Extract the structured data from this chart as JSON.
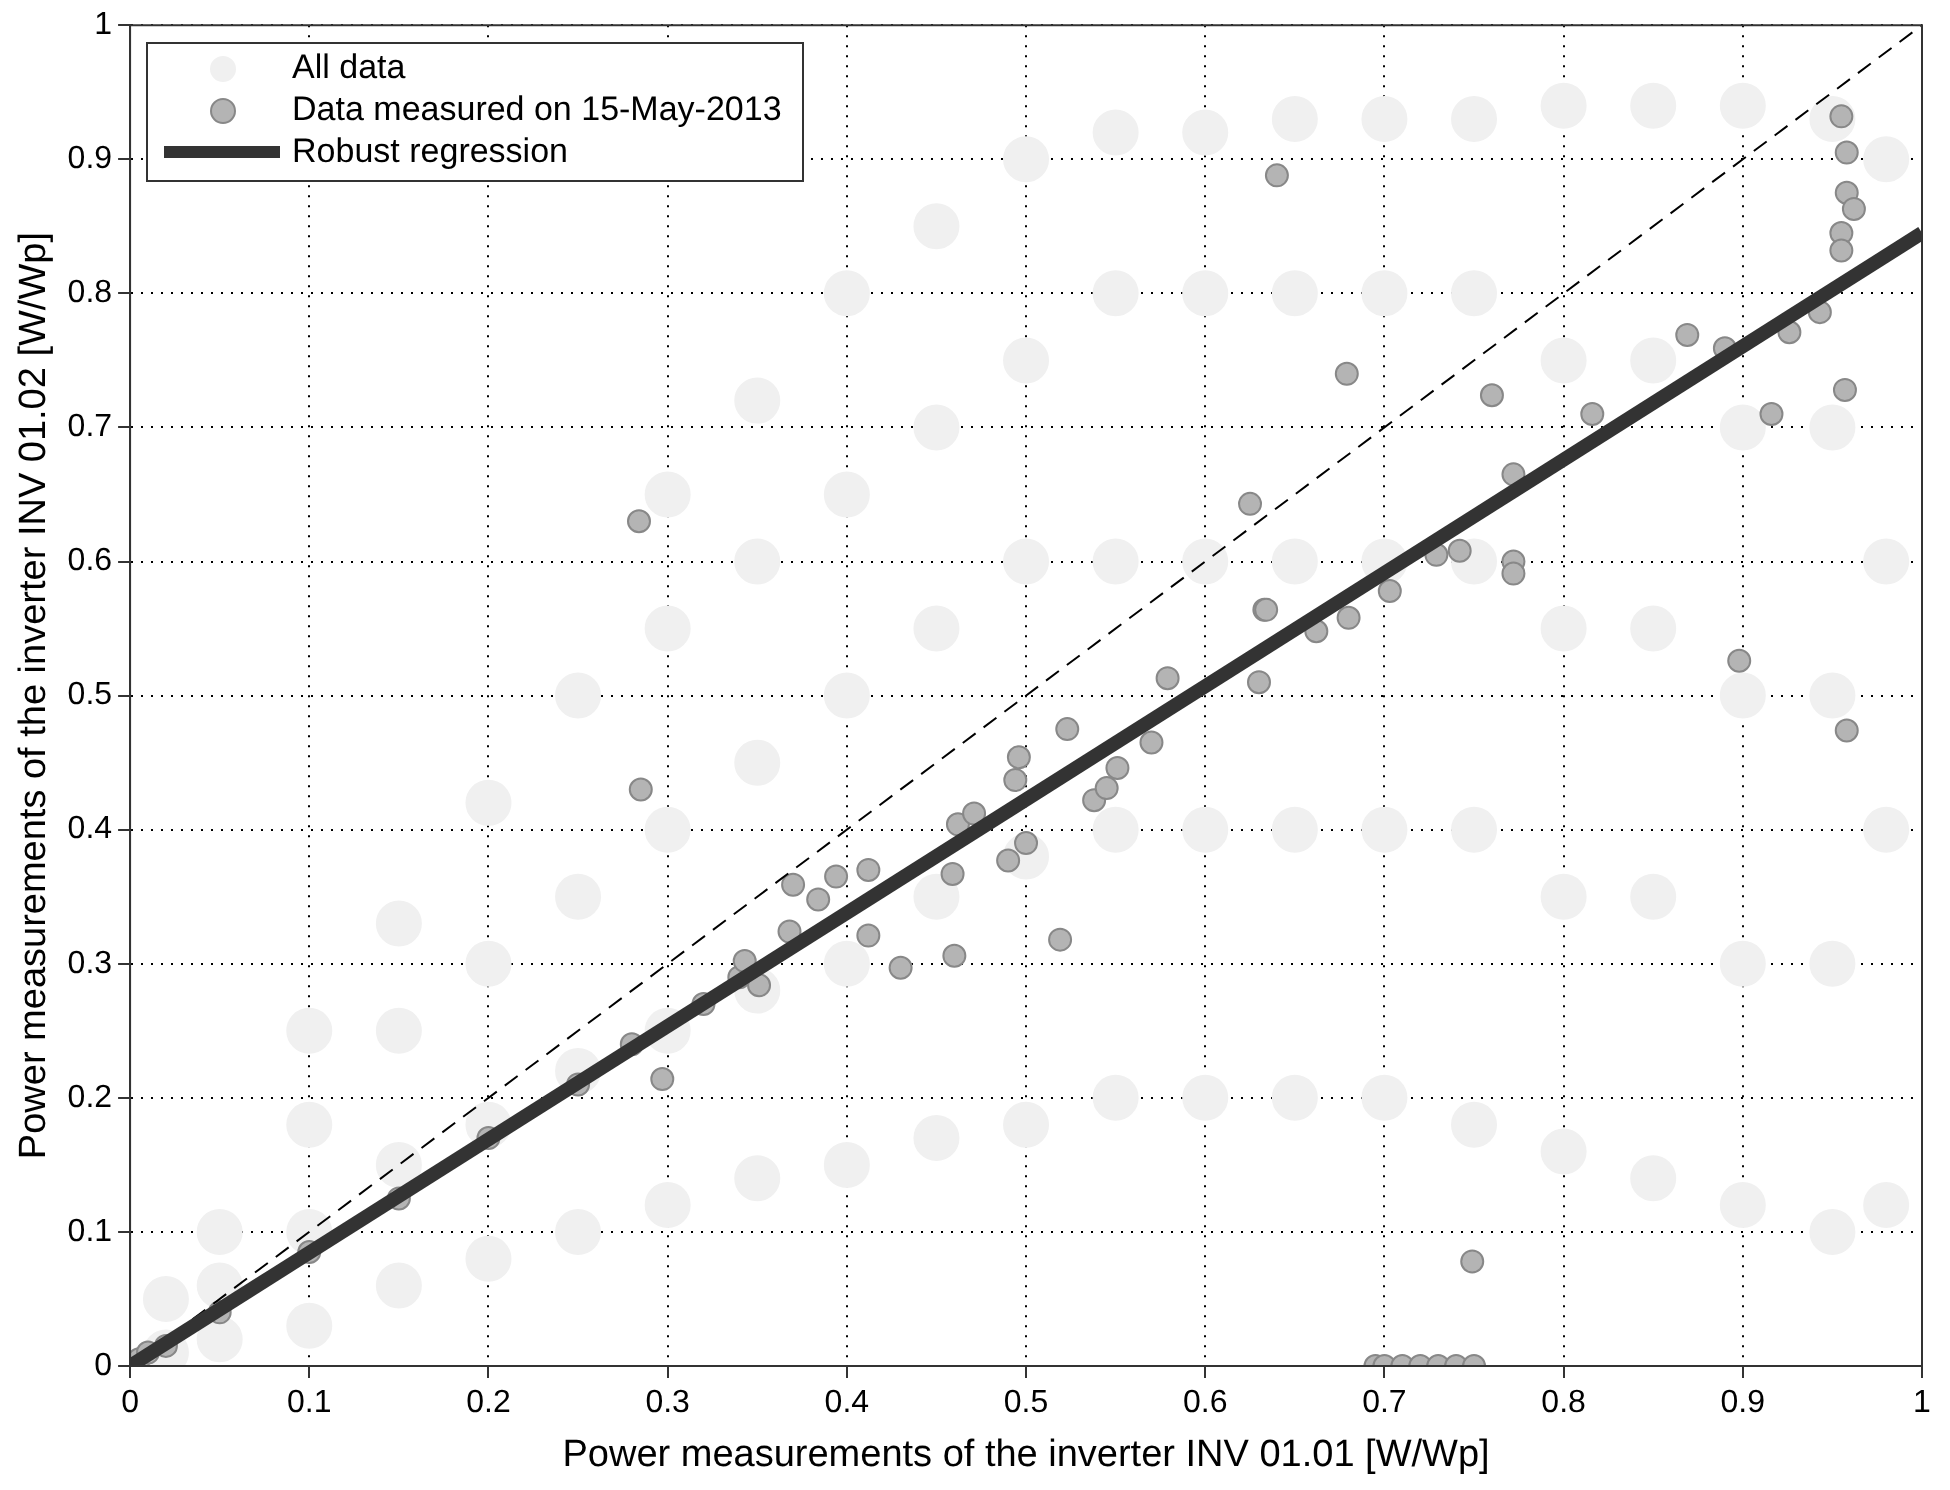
{
  "chart_data": {
    "type": "scatter",
    "xlabel": "Power measurements of the inverter INV 01.01 [W/Wp]",
    "ylabel": "Power measurements of the inverter INV 01.02 [W/Wp]",
    "xlim": [
      0,
      1
    ],
    "ylim": [
      0,
      1
    ],
    "xticks": [
      0,
      0.1,
      0.2,
      0.3,
      0.4,
      0.5,
      0.6,
      0.7,
      0.8,
      0.9,
      1
    ],
    "yticks": [
      0,
      0.1,
      0.2,
      0.3,
      0.4,
      0.5,
      0.6,
      0.7,
      0.8,
      0.9,
      1
    ],
    "grid": true,
    "legend": "top left",
    "series": [
      {
        "name": "All data",
        "marker": "circle",
        "color": "#f0f0f0",
        "x": [
          0.02,
          0.02,
          0.05,
          0.05,
          0.05,
          0.1,
          0.1,
          0.1,
          0.1,
          0.15,
          0.15,
          0.15,
          0.15,
          0.2,
          0.2,
          0.2,
          0.2,
          0.25,
          0.25,
          0.25,
          0.25,
          0.3,
          0.3,
          0.3,
          0.3,
          0.3,
          0.35,
          0.35,
          0.35,
          0.35,
          0.35,
          0.4,
          0.4,
          0.4,
          0.4,
          0.4,
          0.45,
          0.45,
          0.45,
          0.45,
          0.45,
          0.5,
          0.5,
          0.5,
          0.5,
          0.5,
          0.55,
          0.55,
          0.55,
          0.55,
          0.55,
          0.6,
          0.6,
          0.6,
          0.6,
          0.6,
          0.65,
          0.65,
          0.65,
          0.65,
          0.65,
          0.7,
          0.7,
          0.7,
          0.7,
          0.7,
          0.75,
          0.75,
          0.75,
          0.75,
          0.75,
          0.8,
          0.8,
          0.8,
          0.8,
          0.8,
          0.85,
          0.85,
          0.85,
          0.85,
          0.85,
          0.9,
          0.9,
          0.9,
          0.9,
          0.9,
          0.95,
          0.95,
          0.95,
          0.95,
          0.95,
          0.98,
          0.98,
          0.98,
          0.98
        ],
        "values": [
          0.01,
          0.05,
          0.02,
          0.06,
          0.1,
          0.03,
          0.1,
          0.18,
          0.25,
          0.06,
          0.15,
          0.25,
          0.33,
          0.08,
          0.18,
          0.3,
          0.42,
          0.1,
          0.22,
          0.35,
          0.5,
          0.12,
          0.25,
          0.4,
          0.55,
          0.65,
          0.14,
          0.28,
          0.45,
          0.6,
          0.72,
          0.15,
          0.3,
          0.5,
          0.65,
          0.8,
          0.17,
          0.35,
          0.55,
          0.7,
          0.85,
          0.18,
          0.38,
          0.6,
          0.75,
          0.9,
          0.2,
          0.4,
          0.6,
          0.8,
          0.92,
          0.2,
          0.4,
          0.6,
          0.8,
          0.92,
          0.2,
          0.4,
          0.6,
          0.8,
          0.93,
          0.2,
          0.4,
          0.6,
          0.8,
          0.93,
          0.18,
          0.4,
          0.6,
          0.8,
          0.93,
          0.16,
          0.35,
          0.55,
          0.75,
          0.94,
          0.14,
          0.35,
          0.55,
          0.75,
          0.94,
          0.12,
          0.3,
          0.5,
          0.7,
          0.94,
          0.1,
          0.3,
          0.5,
          0.7,
          0.93,
          0.12,
          0.4,
          0.6,
          0.9
        ]
      },
      {
        "name": "Data measured on 15-May-2013",
        "marker": "circle",
        "color": "#b4b4b4",
        "x": [
          0.005,
          0.01,
          0.02,
          0.05,
          0.1,
          0.15,
          0.2,
          0.25,
          0.28,
          0.32,
          0.34,
          0.343,
          0.351,
          0.368,
          0.37,
          0.384,
          0.394,
          0.412,
          0.412,
          0.43,
          0.459,
          0.46,
          0.462,
          0.471,
          0.49,
          0.494,
          0.496,
          0.5,
          0.519,
          0.523,
          0.538,
          0.545,
          0.551,
          0.57,
          0.579,
          0.625,
          0.63,
          0.633,
          0.634,
          0.64,
          0.662,
          0.68,
          0.703,
          0.729,
          0.742,
          0.772,
          0.772,
          0.772,
          0.679,
          0.76,
          0.816,
          0.869,
          0.89,
          0.926,
          0.943,
          0.916,
          0.898,
          0.957,
          0.958,
          0.955,
          0.958,
          0.958,
          0.962,
          0.955,
          0.955,
          0.284,
          0.285,
          0.297,
          0.749,
          0.695,
          0.7,
          0.71,
          0.72,
          0.73,
          0.74,
          0.75
        ],
        "values": [
          0.005,
          0.01,
          0.015,
          0.04,
          0.085,
          0.125,
          0.17,
          0.21,
          0.24,
          0.27,
          0.29,
          0.302,
          0.284,
          0.324,
          0.359,
          0.348,
          0.365,
          0.321,
          0.37,
          0.297,
          0.367,
          0.306,
          0.404,
          0.412,
          0.377,
          0.437,
          0.454,
          0.39,
          0.318,
          0.475,
          0.422,
          0.431,
          0.446,
          0.465,
          0.513,
          0.643,
          0.51,
          0.564,
          0.564,
          0.888,
          0.548,
          0.558,
          0.578,
          0.605,
          0.608,
          0.6,
          0.591,
          0.665,
          0.74,
          0.724,
          0.71,
          0.769,
          0.759,
          0.771,
          0.786,
          0.71,
          0.526,
          0.728,
          0.474,
          0.932,
          0.905,
          0.875,
          0.863,
          0.845,
          0.832,
          0.63,
          0.43,
          0.214,
          0.078,
          0,
          0,
          0,
          0,
          0,
          0,
          0
        ]
      },
      {
        "type": "line",
        "marker": "none",
        "color": "#000000",
        "line_style": "dashed",
        "x": [
          0,
          1
        ],
        "values": [
          0,
          1
        ]
      },
      {
        "name": "Robust regression",
        "type": "line",
        "marker": "none",
        "color": "#333333",
        "line_style": "solid",
        "x": [
          0,
          1
        ],
        "values": [
          0,
          0.845
        ]
      }
    ]
  }
}
